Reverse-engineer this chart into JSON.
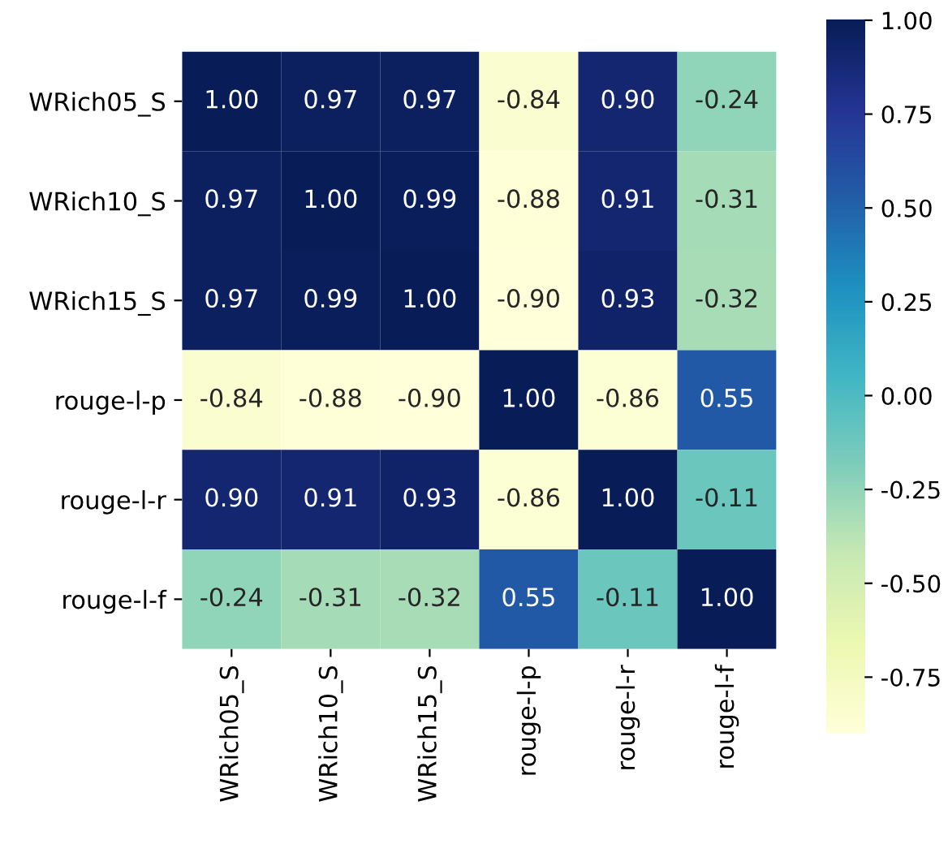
{
  "chart_data": {
    "type": "heatmap",
    "categories": [
      "WRich05_S",
      "WRich10_S",
      "WRich15_S",
      "rouge-l-p",
      "rouge-l-r",
      "rouge-l-f"
    ],
    "y_categories": [
      "WRich05_S",
      "WRich10_S",
      "WRich15_S",
      "rouge-l-p",
      "rouge-l-r",
      "rouge-l-f"
    ],
    "cells": [
      [
        1.0,
        0.97,
        0.97,
        -0.84,
        0.9,
        -0.24
      ],
      [
        0.97,
        1.0,
        0.99,
        -0.88,
        0.91,
        -0.31
      ],
      [
        0.97,
        0.99,
        1.0,
        -0.9,
        0.93,
        -0.32
      ],
      [
        -0.84,
        -0.88,
        -0.9,
        1.0,
        -0.86,
        0.55
      ],
      [
        0.9,
        0.91,
        0.93,
        -0.86,
        1.0,
        -0.11
      ],
      [
        -0.24,
        -0.31,
        -0.32,
        0.55,
        -0.11,
        1.0
      ]
    ],
    "cell_labels": [
      [
        "1.00",
        "0.97",
        "0.97",
        "-0.84",
        "0.90",
        "-0.24"
      ],
      [
        "0.97",
        "1.00",
        "0.99",
        "-0.88",
        "0.91",
        "-0.31"
      ],
      [
        "0.97",
        "0.99",
        "1.00",
        "-0.90",
        "0.93",
        "-0.32"
      ],
      [
        "-0.84",
        "-0.88",
        "-0.90",
        "1.00",
        "-0.86",
        "0.55"
      ],
      [
        "0.90",
        "0.91",
        "0.93",
        "-0.86",
        "1.00",
        "-0.11"
      ],
      [
        "-0.24",
        "-0.31",
        "-0.32",
        "0.55",
        "-0.11",
        "1.00"
      ]
    ],
    "clim": [
      -0.9,
      1.0
    ],
    "cticks": [
      {
        "value": -0.75,
        "label": "-0.75"
      },
      {
        "value": -0.5,
        "label": "-0.50"
      },
      {
        "value": -0.25,
        "label": "-0.25"
      },
      {
        "value": 0,
        "label": "0.00"
      },
      {
        "value": 0.25,
        "label": "0.25"
      },
      {
        "value": 0.5,
        "label": "0.50"
      },
      {
        "value": 0.75,
        "label": "0.75"
      },
      {
        "value": 1,
        "label": "1.00"
      }
    ]
  }
}
